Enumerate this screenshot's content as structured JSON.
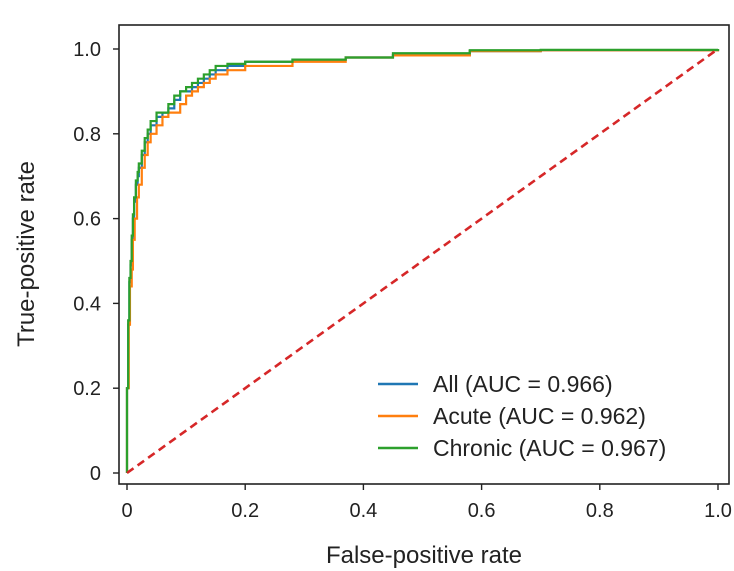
{
  "chart_data": {
    "type": "line",
    "title": "",
    "xlabel": "False-positive rate",
    "ylabel": "True-positive rate",
    "xlim": [
      0,
      1
    ],
    "ylim": [
      0,
      1
    ],
    "xticks": [
      "0",
      "0.2",
      "0.4",
      "0.6",
      "0.8",
      "1.0"
    ],
    "yticks": [
      "0",
      "0.2",
      "0.4",
      "0.6",
      "0.8",
      "1.0"
    ],
    "grid": false,
    "legend_position": "bottom-right",
    "series": [
      {
        "name": "All (AUC = 0.966)",
        "color": "#1f77b4",
        "x": [
          0,
          0,
          0.002,
          0.004,
          0.006,
          0.008,
          0.01,
          0.012,
          0.015,
          0.018,
          0.02,
          0.025,
          0.03,
          0.035,
          0.04,
          0.05,
          0.06,
          0.07,
          0.08,
          0.09,
          0.1,
          0.11,
          0.12,
          0.13,
          0.14,
          0.15,
          0.17,
          0.2,
          0.28,
          0.37,
          0.45,
          0.58,
          0.7,
          1.0
        ],
        "y": [
          0,
          0.2,
          0.35,
          0.45,
          0.49,
          0.55,
          0.6,
          0.64,
          0.68,
          0.7,
          0.72,
          0.75,
          0.78,
          0.8,
          0.82,
          0.84,
          0.85,
          0.86,
          0.88,
          0.9,
          0.9,
          0.91,
          0.92,
          0.93,
          0.94,
          0.95,
          0.96,
          0.97,
          0.975,
          0.98,
          0.985,
          0.995,
          0.997,
          1.0
        ]
      },
      {
        "name": "Acute (AUC = 0.962)",
        "color": "#ff7f0e",
        "x": [
          0,
          0,
          0.003,
          0.005,
          0.008,
          0.01,
          0.013,
          0.017,
          0.02,
          0.025,
          0.03,
          0.035,
          0.04,
          0.05,
          0.06,
          0.07,
          0.08,
          0.09,
          0.1,
          0.11,
          0.12,
          0.13,
          0.14,
          0.15,
          0.17,
          0.2,
          0.28,
          0.37,
          0.45,
          0.58,
          0.7,
          1.0
        ],
        "y": [
          0,
          0.2,
          0.35,
          0.44,
          0.48,
          0.55,
          0.6,
          0.65,
          0.68,
          0.72,
          0.75,
          0.78,
          0.8,
          0.82,
          0.84,
          0.85,
          0.85,
          0.87,
          0.89,
          0.9,
          0.91,
          0.92,
          0.93,
          0.94,
          0.95,
          0.96,
          0.97,
          0.98,
          0.985,
          0.995,
          0.997,
          1.0
        ]
      },
      {
        "name": "Chronic (AUC = 0.967)",
        "color": "#2ca02c",
        "x": [
          0,
          0,
          0.002,
          0.004,
          0.006,
          0.008,
          0.01,
          0.012,
          0.015,
          0.018,
          0.02,
          0.025,
          0.03,
          0.035,
          0.04,
          0.05,
          0.06,
          0.07,
          0.08,
          0.09,
          0.1,
          0.11,
          0.12,
          0.13,
          0.14,
          0.15,
          0.17,
          0.2,
          0.28,
          0.37,
          0.45,
          0.58,
          0.7,
          1.0
        ],
        "y": [
          0,
          0.2,
          0.36,
          0.46,
          0.5,
          0.56,
          0.61,
          0.65,
          0.69,
          0.71,
          0.73,
          0.76,
          0.79,
          0.81,
          0.83,
          0.85,
          0.85,
          0.87,
          0.89,
          0.9,
          0.91,
          0.92,
          0.93,
          0.94,
          0.95,
          0.96,
          0.965,
          0.97,
          0.975,
          0.98,
          0.99,
          0.997,
          0.998,
          1.0
        ]
      }
    ],
    "reference_line": {
      "x": [
        0,
        1
      ],
      "y": [
        0,
        1
      ],
      "color": "#d62728",
      "style": "dashed"
    }
  }
}
